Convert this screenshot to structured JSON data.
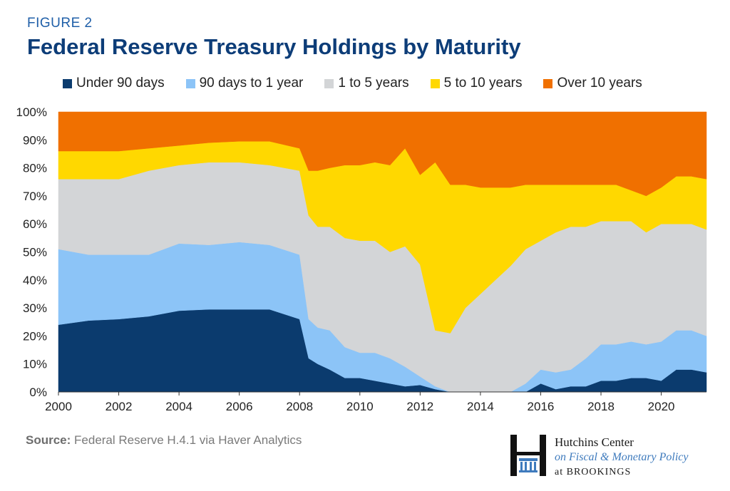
{
  "figure_label": "FIGURE 2",
  "source_label": "Source:",
  "source_text": " Federal Reserve H.4.1 via Haver Analytics",
  "logo": {
    "line1": "Hutchins Center",
    "line2": "on Fiscal & Monetary Policy",
    "line3": "at BROOKINGS"
  },
  "chart_data": {
    "type": "area",
    "stacked": true,
    "normalized_percent": true,
    "title": "Federal Reserve Treasury Holdings by Maturity",
    "xlim": [
      2000,
      2021.5
    ],
    "ylim": [
      0,
      100
    ],
    "x_ticks": [
      2000,
      2002,
      2004,
      2006,
      2008,
      2010,
      2012,
      2014,
      2016,
      2018,
      2020
    ],
    "y_ticks": [
      "0%",
      "10%",
      "20%",
      "30%",
      "40%",
      "50%",
      "60%",
      "70%",
      "80%",
      "90%",
      "100%"
    ],
    "legend_position": "top",
    "grid": false,
    "x": [
      2000,
      2001,
      2002,
      2003,
      2004,
      2005,
      2006,
      2007,
      2008,
      2008.3,
      2008.6,
      2009,
      2009.5,
      2010,
      2010.5,
      2011,
      2011.5,
      2012,
      2012.5,
      2013,
      2013.5,
      2014,
      2014.5,
      2015,
      2015.5,
      2016,
      2016.5,
      2017,
      2017.5,
      2018,
      2018.5,
      2019,
      2019.5,
      2020,
      2020.5,
      2021,
      2021.5
    ],
    "series": [
      {
        "name": "Under 90 days",
        "color": "#0b3b6e",
        "values": [
          24,
          25.5,
          26,
          27,
          29,
          29.5,
          29.5,
          29.5,
          26,
          12,
          10,
          8,
          5,
          5,
          4,
          3,
          2,
          2.5,
          1,
          0,
          0,
          0,
          0,
          0,
          0,
          3,
          1,
          2,
          2,
          4,
          4,
          5,
          5,
          4,
          8,
          8,
          7
        ]
      },
      {
        "name": "90 days to 1 year",
        "color": "#8cc4f7",
        "values": [
          27,
          23.5,
          23,
          22,
          24,
          23,
          24,
          23,
          23,
          14,
          13,
          14,
          11,
          9,
          10,
          9,
          7,
          3,
          1,
          0,
          0,
          0,
          0,
          0,
          3,
          5,
          6,
          6,
          10,
          13,
          13,
          13,
          12,
          14,
          14,
          14,
          13
        ]
      },
      {
        "name": "1 to 5 years",
        "color": "#d3d5d7",
        "values": [
          25,
          27,
          27,
          30,
          28,
          29.5,
          28.5,
          28.5,
          30,
          37,
          36,
          37,
          39,
          40,
          40,
          38,
          43,
          40,
          20,
          21,
          30,
          35,
          40,
          45,
          48,
          46,
          50,
          51,
          47,
          44,
          44,
          43,
          40,
          42,
          38,
          38,
          38
        ]
      },
      {
        "name": "5 to 10 years",
        "color": "#ffd800",
        "values": [
          10,
          10,
          10,
          8,
          7,
          7,
          7.5,
          8.5,
          8,
          16,
          20,
          21,
          26,
          27,
          28,
          31,
          35,
          32,
          60,
          53,
          44,
          38,
          33,
          28,
          23,
          20,
          17,
          15,
          15,
          13,
          13,
          11,
          13,
          13,
          17,
          17,
          18
        ]
      },
      {
        "name": "Over 10 years",
        "color": "#f07000",
        "values": [
          14,
          14,
          14,
          13,
          12,
          11,
          10.5,
          10.5,
          13,
          21,
          21,
          20,
          19,
          19,
          18,
          19,
          13,
          22.5,
          18,
          26,
          26,
          27,
          27,
          27,
          26,
          26,
          26,
          26,
          26,
          26,
          26,
          28,
          30,
          27,
          23,
          23,
          24
        ]
      }
    ]
  }
}
